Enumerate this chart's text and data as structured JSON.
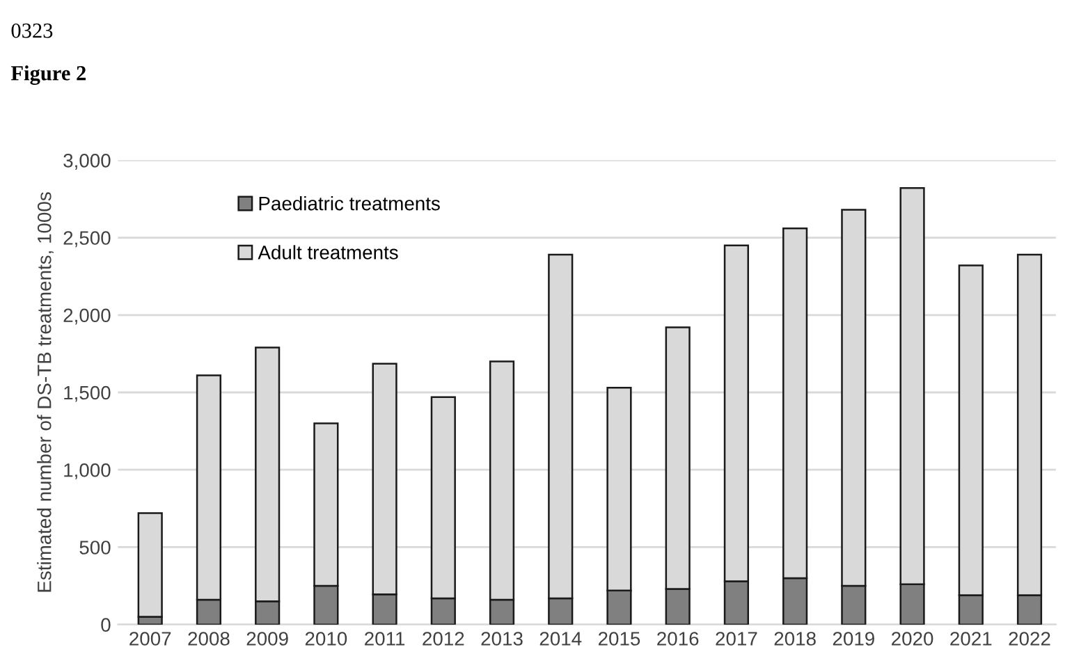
{
  "chart_data": {
    "type": "bar",
    "stacked": true,
    "annotations": [
      "0323",
      "Figure 2"
    ],
    "ylabel": "Estimated number of DS-TB treatments, 1000s",
    "categories": [
      "2007",
      "2008",
      "2009",
      "2010",
      "2011",
      "2012",
      "2013",
      "2014",
      "2015",
      "2016",
      "2017",
      "2018",
      "2019",
      "2020",
      "2021",
      "2022"
    ],
    "series": [
      {
        "name": "Paediatric treatments",
        "color": "#808080",
        "values": [
          50,
          160,
          150,
          250,
          195,
          170,
          160,
          170,
          220,
          230,
          280,
          300,
          250,
          260,
          190,
          190
        ]
      },
      {
        "name": "Adult treatments",
        "color": "#d9d9d9",
        "values": [
          670,
          1450,
          1640,
          1050,
          1490,
          1300,
          1540,
          2220,
          1310,
          1690,
          2170,
          2260,
          2430,
          2560,
          2130,
          2200
        ]
      }
    ],
    "ylim": [
      0,
      3000
    ],
    "yticks": [
      {
        "value": 0,
        "label": "0"
      },
      {
        "value": 500,
        "label": "500"
      },
      {
        "value": 1000,
        "label": "1,000"
      },
      {
        "value": 1500,
        "label": "1,500"
      },
      {
        "value": 2000,
        "label": "2,000"
      },
      {
        "value": 2500,
        "label": "2,500"
      },
      {
        "value": 3000,
        "label": "3,000"
      }
    ],
    "grid": "y",
    "legend": "top left"
  }
}
